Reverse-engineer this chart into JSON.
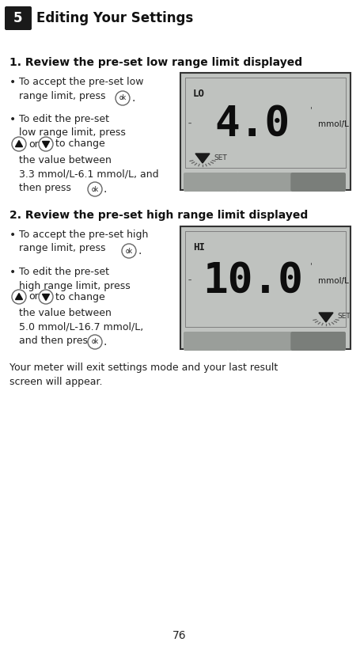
{
  "title_num": "5",
  "title_text": "Editing Your Settings",
  "section1_heading": "1. Review the pre-set low range limit displayed",
  "section2_heading": "2. Review the pre-set high range limit displayed",
  "footer_text": "Your meter will exit settings mode and your last result\nscreen will appear.",
  "page_num": "76",
  "display1_value": "4.0",
  "display1_label": "LO",
  "display1_unit": "mmol/L",
  "display2_value": "10.0",
  "display2_label": "HI",
  "display2_unit": "mmol/L",
  "bg_color": "#ffffff",
  "heading_color": "#111111",
  "body_color": "#222222",
  "title_box_color": "#1a1a1a",
  "display_border_color": "#333333",
  "display_bg": "#c0c3c0",
  "button_color1": "#9a9e9a",
  "button_color2": "#7a7e7a"
}
